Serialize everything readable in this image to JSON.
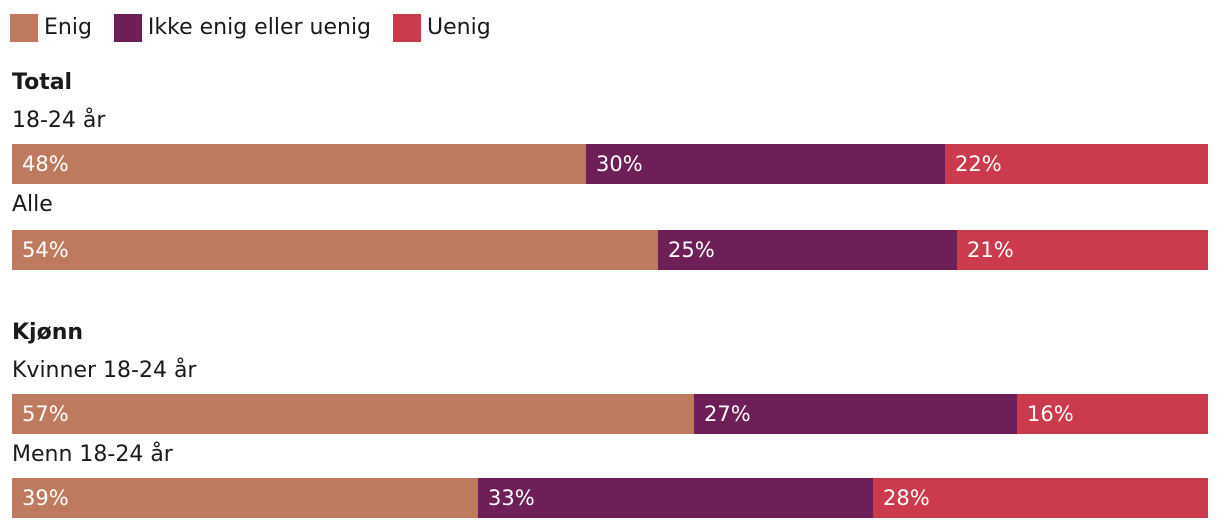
{
  "legend": [
    {
      "label": "Enig",
      "color": "#bd7a5f"
    },
    {
      "label": "Ikke enig eller uenig",
      "color": "#6e1f57"
    },
    {
      "label": "Uenig",
      "color": "#cc3a4e"
    }
  ],
  "chart_data": {
    "type": "bar",
    "orientation": "horizontal",
    "stacked": true,
    "unit": "%",
    "groups": [
      {
        "title": "Total",
        "rows": [
          {
            "label": "18-24 år",
            "values": [
              48,
              30,
              22
            ]
          },
          {
            "label": "Alle",
            "values": [
              54,
              25,
              21
            ]
          }
        ]
      },
      {
        "title": "Kjønn",
        "rows": [
          {
            "label": "Kvinner 18-24 år",
            "values": [
              57,
              27,
              16
            ]
          },
          {
            "label": "Menn 18-24 år",
            "values": [
              39,
              33,
              28
            ]
          }
        ]
      }
    ],
    "series": [
      {
        "name": "Enig",
        "color": "#bd7a5f"
      },
      {
        "name": "Ikke enig eller uenig",
        "color": "#6e1f57"
      },
      {
        "name": "Uenig",
        "color": "#cc3a4e"
      }
    ]
  }
}
